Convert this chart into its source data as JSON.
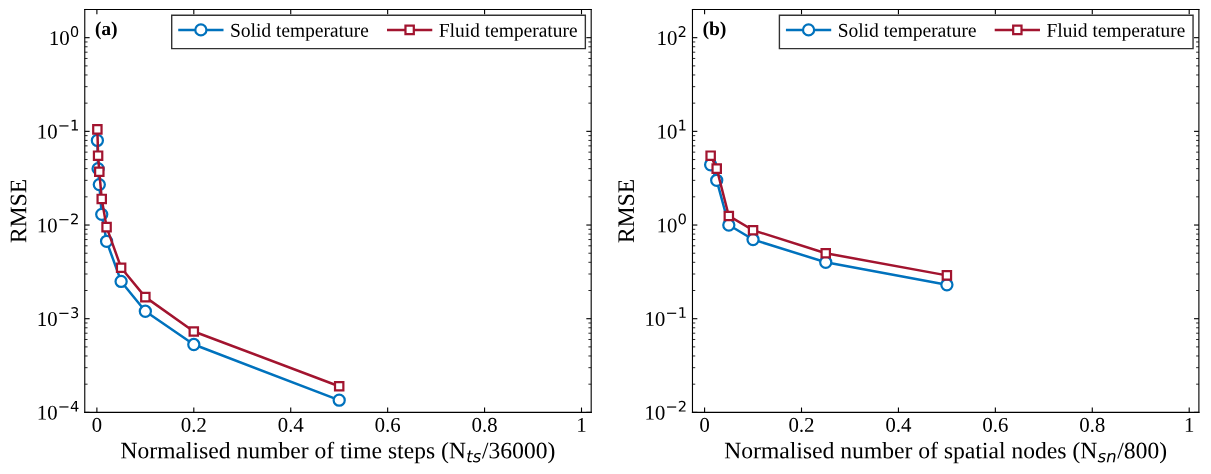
{
  "chart_data": [
    {
      "type": "line",
      "xlabel": "Normalised number of time steps (N$_{ts}$/36000)",
      "ylabel": "RMSE",
      "annotations": [
        "(a)"
      ],
      "log": "y",
      "legend": "top right",
      "line_style": "solid",
      "grid": false,
      "xlim": [
        -0.025,
        1.02
      ],
      "xticks": [
        0,
        0.2,
        0.4,
        0.6,
        0.8,
        1
      ],
      "ylim": [
        0.0001,
        2
      ],
      "yticks": [
        {
          "value": 0.0001,
          "label": "10$^{−4}$"
        },
        {
          "value": 0.001,
          "label": "10$^{−3}$"
        },
        {
          "value": 0.01,
          "label": "10$^{−2}$"
        },
        {
          "value": 0.1,
          "label": "10$^{−1}$"
        },
        {
          "value": 1,
          "label": "10$^{0}$"
        }
      ],
      "x": [
        0.001,
        0.0025,
        0.005,
        0.01,
        0.02,
        0.05,
        0.1,
        0.2,
        0.5
      ],
      "series": [
        {
          "name": "Solid temperature",
          "color": "#0072bd",
          "marker": "circle",
          "values": [
            0.08,
            0.04,
            0.027,
            0.013,
            0.0067,
            0.0025,
            0.0012,
            0.00053,
            0.000135
          ]
        },
        {
          "name": "Fluid temperature",
          "color": "#a2142f",
          "marker": "square",
          "values": [
            0.105,
            0.055,
            0.037,
            0.019,
            0.0095,
            0.0035,
            0.0017,
            0.00073,
            0.00019
          ]
        }
      ]
    },
    {
      "type": "line",
      "xlabel": "Normalised number of spatial nodes (N$_{sn}$/800)",
      "ylabel": "RMSE",
      "annotations": [
        "(b)"
      ],
      "log": "y",
      "legend": "top right",
      "line_style": "solid",
      "grid": false,
      "xlim": [
        -0.025,
        1.02
      ],
      "xticks": [
        0,
        0.2,
        0.4,
        0.6,
        0.8,
        1
      ],
      "ylim": [
        0.01,
        200
      ],
      "yticks": [
        {
          "value": 0.01,
          "label": "10$^{−2}$"
        },
        {
          "value": 0.1,
          "label": "10$^{−1}$"
        },
        {
          "value": 1,
          "label": "10$^{0}$"
        },
        {
          "value": 10,
          "label": "10$^{1}$"
        },
        {
          "value": 100,
          "label": "10$^{2}$"
        }
      ],
      "x": [
        0.0125,
        0.025,
        0.05,
        0.1,
        0.25,
        0.5
      ],
      "series": [
        {
          "name": "Solid temperature",
          "color": "#0072bd",
          "marker": "circle",
          "values": [
            4.4,
            3.0,
            1.0,
            0.7,
            0.4,
            0.23
          ]
        },
        {
          "name": "Fluid temperature",
          "color": "#a2142f",
          "marker": "square",
          "values": [
            5.5,
            4.0,
            1.25,
            0.88,
            0.5,
            0.29
          ]
        }
      ]
    }
  ]
}
